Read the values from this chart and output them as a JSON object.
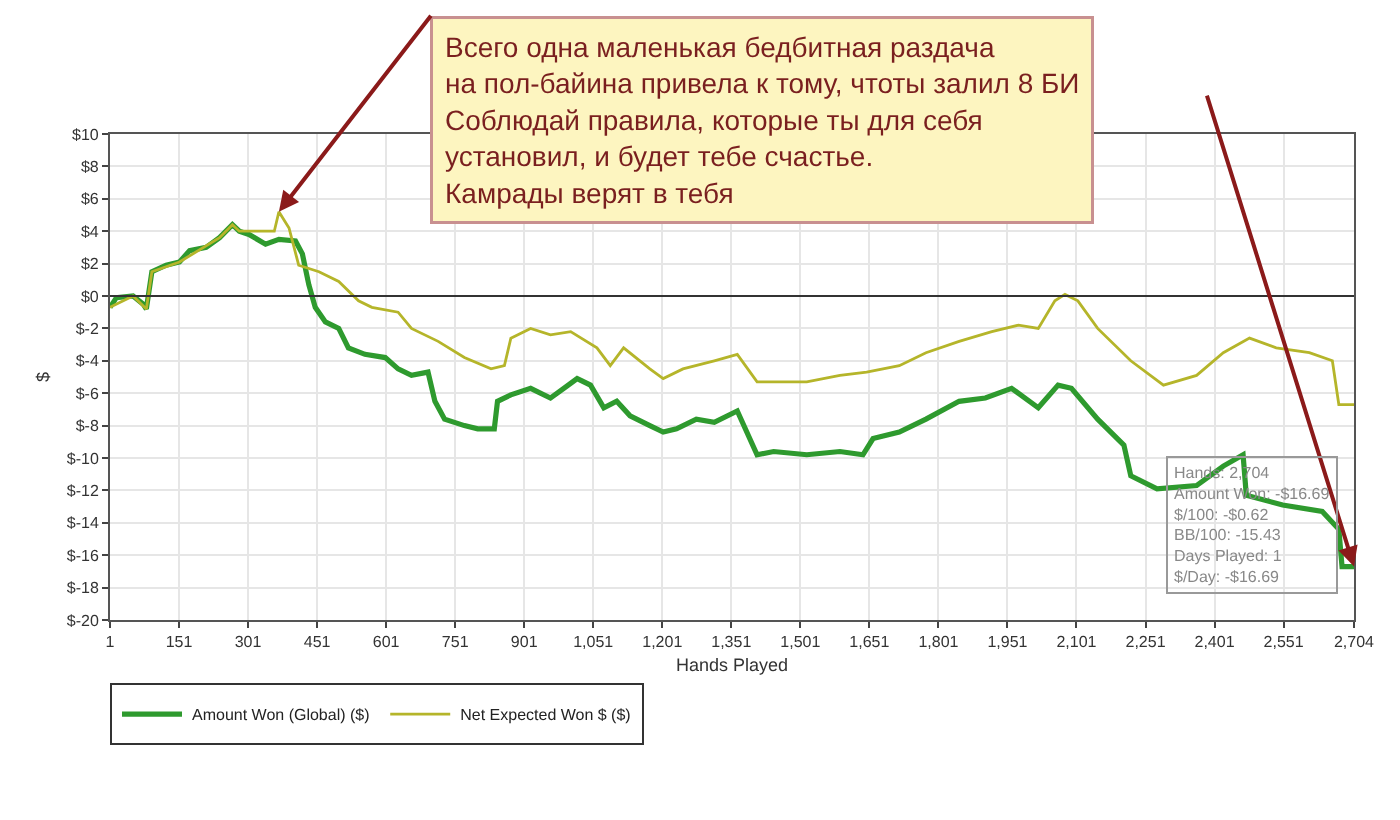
{
  "chart_data": {
    "type": "line",
    "xlabel": "Hands Played",
    "ylabel": "$",
    "xlim": [
      1,
      2704
    ],
    "ylim": [
      -20,
      10
    ],
    "xticks": [
      1,
      151,
      301,
      451,
      601,
      751,
      901,
      {
        "value": 1051,
        "label": "1,051"
      },
      {
        "value": 1201,
        "label": "1,201"
      },
      {
        "value": 1351,
        "label": "1,351"
      },
      {
        "value": 1501,
        "label": "1,501"
      },
      {
        "value": 1651,
        "label": "1,651"
      },
      {
        "value": 1801,
        "label": "1,801"
      },
      {
        "value": 1951,
        "label": "1,951"
      },
      {
        "value": 2101,
        "label": "2,101"
      },
      {
        "value": 2251,
        "label": "2,251"
      },
      {
        "value": 2401,
        "label": "2,401"
      },
      {
        "value": 2551,
        "label": "2,551"
      },
      {
        "value": 2704,
        "label": "2,704"
      }
    ],
    "yticks": [
      {
        "value": -20,
        "label": "$-20"
      },
      {
        "value": -18,
        "label": "$-18"
      },
      {
        "value": -16,
        "label": "$-16"
      },
      {
        "value": -14,
        "label": "$-14"
      },
      {
        "value": -12,
        "label": "$-12"
      },
      {
        "value": -10,
        "label": "$-10"
      },
      {
        "value": -8,
        "label": "$-8"
      },
      {
        "value": -6,
        "label": "$-6"
      },
      {
        "value": -4,
        "label": "$-4"
      },
      {
        "value": -2,
        "label": "$-2"
      },
      {
        "value": 0,
        "label": "$0"
      },
      {
        "value": 2,
        "label": "$2"
      },
      {
        "value": 4,
        "label": "$4"
      },
      {
        "value": 6,
        "label": "$6"
      },
      {
        "value": 8,
        "label": "$8"
      },
      {
        "value": 10,
        "label": "$10"
      }
    ],
    "grid": true,
    "legend": "bottom left",
    "line_style": "solid",
    "marker": "none",
    "ref_lines": [
      {
        "axis": "y",
        "value": 0,
        "color": "#333333"
      }
    ],
    "series": [
      {
        "name": "Amount Won (Global) ($)",
        "color": "#2e9a2e",
        "x": [
          1,
          15,
          51,
          73,
          80,
          92,
          123,
          152,
          174,
          210,
          239,
          267,
          282,
          303,
          339,
          368,
          404,
          419,
          433,
          447,
          469,
          498,
          519,
          555,
          599,
          627,
          656,
          692,
          707,
          728,
          771,
          800,
          836,
          843,
          872,
          915,
          958,
          987,
          1016,
          1045,
          1074,
          1102,
          1131,
          1174,
          1203,
          1232,
          1275,
          1314,
          1364,
          1407,
          1443,
          1515,
          1587,
          1637,
          1659,
          1716,
          1774,
          1846,
          1903,
          1960,
          2018,
          2061,
          2090,
          2147,
          2204,
          2219,
          2276,
          2362,
          2420,
          2463,
          2470,
          2549,
          2635,
          2671,
          2678,
          2704
        ],
        "values": [
          -0.7,
          -0.1,
          0,
          -0.5,
          -0.8,
          1.5,
          1.9,
          2.1,
          2.8,
          3.0,
          3.6,
          4.4,
          4.0,
          3.8,
          3.2,
          3.5,
          3.4,
          2.6,
          0.7,
          -0.7,
          -1.6,
          -2.0,
          -3.2,
          -3.6,
          -3.8,
          -4.5,
          -4.9,
          -4.7,
          -6.5,
          -7.6,
          -8.0,
          -8.2,
          -8.2,
          -6.5,
          -6.1,
          -5.7,
          -6.3,
          -5.7,
          -5.1,
          -5.5,
          -6.9,
          -6.5,
          -7.4,
          -8.0,
          -8.4,
          -8.2,
          -7.6,
          -7.8,
          -7.1,
          -9.8,
          -9.6,
          -9.8,
          -9.6,
          -9.8,
          -8.8,
          -8.4,
          -7.6,
          -6.5,
          -6.3,
          -5.7,
          -6.9,
          -5.5,
          -5.7,
          -7.6,
          -9.2,
          -11.1,
          -11.9,
          -11.7,
          -10.5,
          -9.8,
          -12.3,
          -12.9,
          -13.3,
          -14.4,
          -16.7,
          -16.7
        ]
      },
      {
        "name": "Net Expected Won $ ($)",
        "color": "#b5b52a",
        "x": [
          1,
          51,
          80,
          92,
          152,
          239,
          267,
          282,
          305,
          358,
          368,
          390,
          411,
          455,
          498,
          541,
          570,
          627,
          656,
          714,
          771,
          829,
          858,
          872,
          915,
          958,
          1002,
          1059,
          1088,
          1117,
          1174,
          1203,
          1246,
          1314,
          1364,
          1407,
          1515,
          1587,
          1645,
          1716,
          1774,
          1846,
          1917,
          1975,
          2018,
          2054,
          2076,
          2104,
          2147,
          2219,
          2290,
          2362,
          2420,
          2477,
          2535,
          2607,
          2657,
          2671,
          2704
        ],
        "values": [
          -0.7,
          0,
          -0.8,
          1.5,
          2.1,
          3.6,
          4.4,
          4.0,
          4.0,
          4.0,
          5.2,
          4.2,
          1.9,
          1.5,
          0.9,
          -0.3,
          -0.7,
          -1.0,
          -2.0,
          -2.8,
          -3.8,
          -4.5,
          -4.3,
          -2.6,
          -2.0,
          -2.4,
          -2.2,
          -3.2,
          -4.3,
          -3.2,
          -4.5,
          -5.1,
          -4.5,
          -4.0,
          -3.6,
          -5.3,
          -5.3,
          -4.9,
          -4.7,
          -4.3,
          -3.5,
          -2.8,
          -2.2,
          -1.8,
          -2.0,
          -0.3,
          0.1,
          -0.3,
          -2.0,
          -4.0,
          -5.5,
          -4.9,
          -3.5,
          -2.6,
          -3.2,
          -3.5,
          -4.0,
          -6.7,
          -6.7
        ]
      }
    ],
    "annotations": [
      {
        "text": "Всего одна маленькая бедбитная раздача\nна пол-байина привела к тому, чтоты залил 8 БИ\nСоблюдай правила, которые ты для себя\nустановил, и будет тебе счастье.\nКамрады верят в тебя",
        "x": 368,
        "y": 5.2
      },
      {
        "text": "Hands: 2,704\nAmount Won: -$16.69\n$/100: -$0.62\nBB/100: -15.43\nDays Played: 1\n$/Day: -$16.69",
        "x": 2704,
        "y": -16.69
      }
    ]
  }
}
